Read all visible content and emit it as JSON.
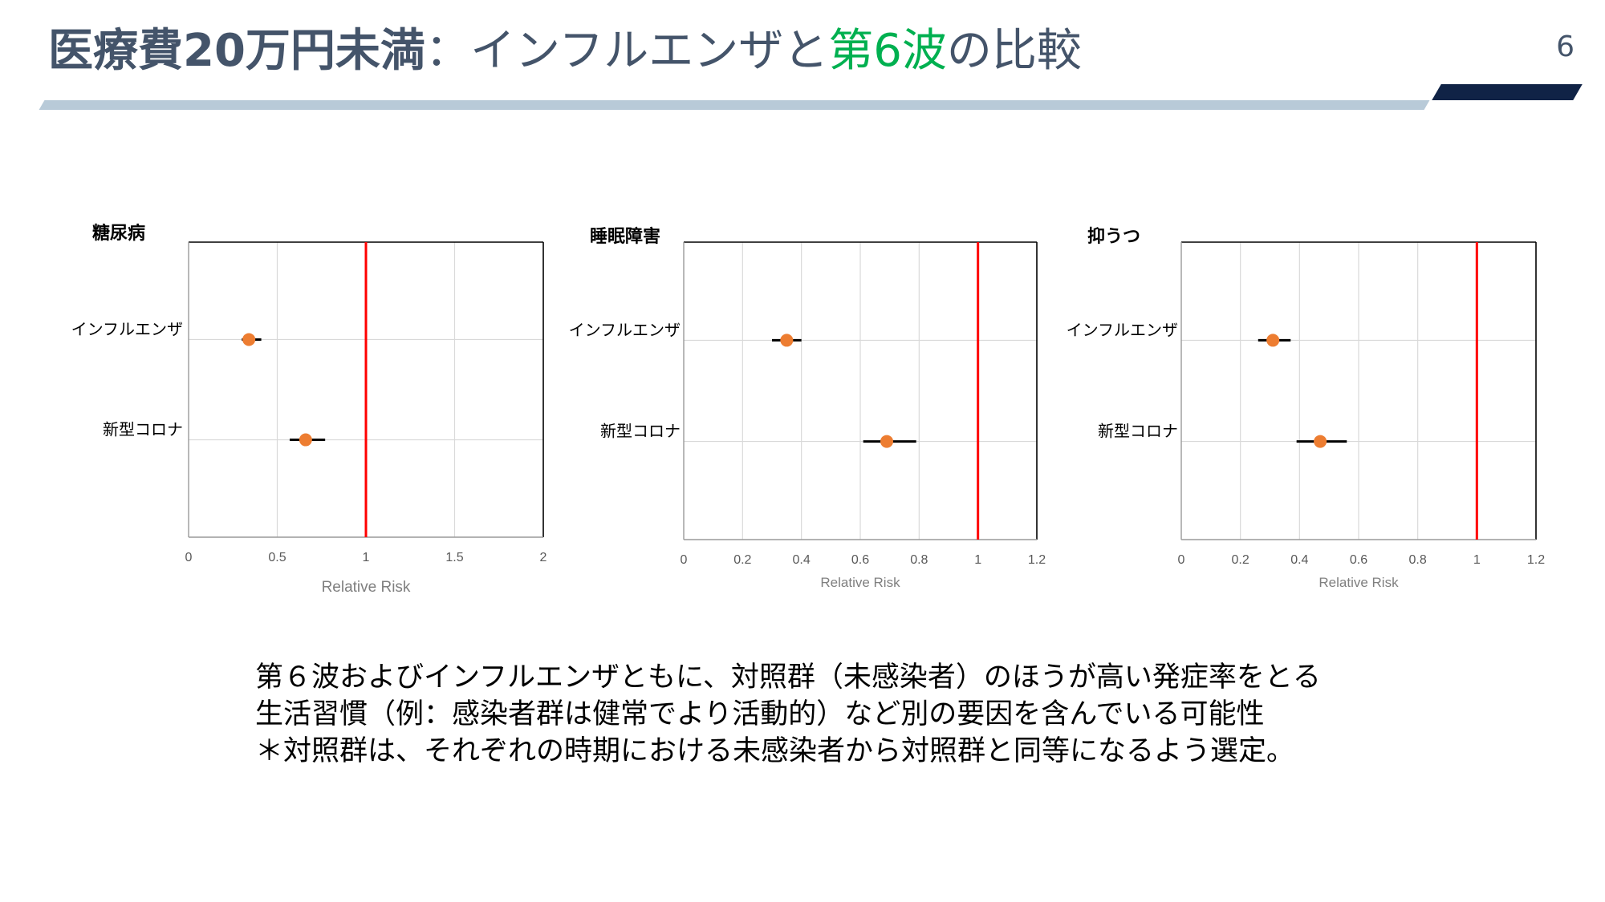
{
  "page": {
    "title_part1": "医療費20万円未満",
    "title_part2": "：インフルエンザと",
    "title_part3": "第6波",
    "title_part4": "の比較",
    "page_number": "6"
  },
  "colors": {
    "title": "#44546a",
    "accent": "#00b050",
    "point": "#ed7d31",
    "reference_line": "#ff0000",
    "grid": "#d9d9d9",
    "rule_light": "#b8cad8",
    "rule_dark": "#102346"
  },
  "chart_data": [
    {
      "type": "scatter",
      "title": "糖尿病",
      "xlabel": "Relative Risk",
      "xlim": [
        0,
        2
      ],
      "xticks": [
        "0",
        "0.5",
        "1",
        "1.5",
        "2"
      ],
      "tick_values": [
        0,
        0.5,
        1,
        1.5,
        2
      ],
      "reference_value": 1,
      "categories": [
        "インフルエンザ",
        "新型コロナ"
      ],
      "points": [
        {
          "label": "インフルエンザ",
          "value": 0.34,
          "ci": [
            0.3,
            0.41
          ]
        },
        {
          "label": "新型コロナ",
          "value": 0.66,
          "ci": [
            0.57,
            0.77
          ]
        }
      ]
    },
    {
      "type": "scatter",
      "title": "睡眠障害",
      "xlabel": "Relative Risk",
      "xlim": [
        0,
        1.2
      ],
      "xticks": [
        "0",
        "0.2",
        "0.4",
        "0.6",
        "0.8",
        "1",
        "1.2"
      ],
      "tick_values": [
        0,
        0.2,
        0.4,
        0.6,
        0.8,
        1,
        1.2
      ],
      "reference_value": 1,
      "categories": [
        "インフルエンザ",
        "新型コロナ"
      ],
      "points": [
        {
          "label": "インフルエンザ",
          "value": 0.35,
          "ci": [
            0.3,
            0.4
          ]
        },
        {
          "label": "新型コロナ",
          "value": 0.69,
          "ci": [
            0.61,
            0.79
          ]
        }
      ]
    },
    {
      "type": "scatter",
      "title": "抑うつ",
      "xlabel": "Relative Risk",
      "xlim": [
        0,
        1.2
      ],
      "xticks": [
        "0",
        "0.2",
        "0.4",
        "0.6",
        "0.8",
        "1",
        "1.2"
      ],
      "tick_values": [
        0,
        0.2,
        0.4,
        0.6,
        0.8,
        1,
        1.2
      ],
      "reference_value": 1,
      "categories": [
        "インフルエンザ",
        "新型コロナ"
      ],
      "points": [
        {
          "label": "インフルエンザ",
          "value": 0.31,
          "ci": [
            0.26,
            0.37
          ]
        },
        {
          "label": "新型コロナ",
          "value": 0.47,
          "ci": [
            0.39,
            0.56
          ]
        }
      ]
    }
  ],
  "note": {
    "line1": "第６波およびインフルエンザともに、対照群（未感染者）のほうが高い発症率をとる",
    "line2": "生活習慣（例：感染者群は健常でより活動的）など別の要因を含んでいる可能性",
    "line3": "＊対照群は、それぞれの時期における未感染者から対照群と同等になるよう選定。"
  }
}
